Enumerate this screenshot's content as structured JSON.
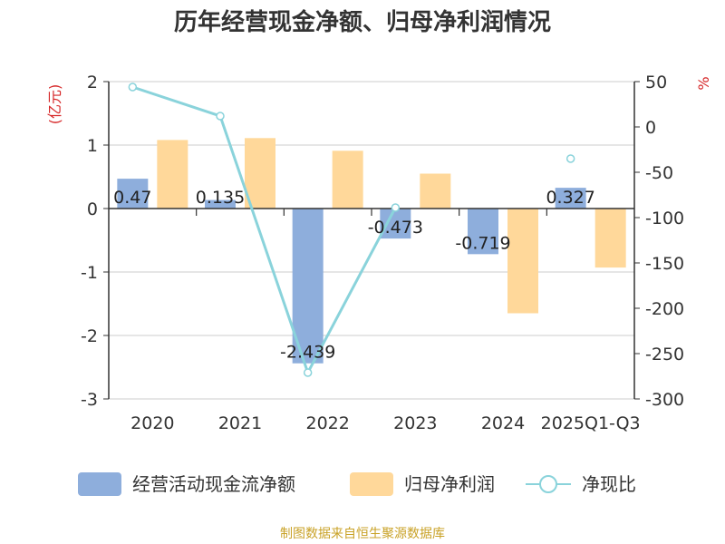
{
  "chart_data": {
    "type": "bar",
    "title": "历年经营现金净额、归母净利润情况",
    "categories": [
      "2020",
      "2021",
      "2022",
      "2023",
      "2024",
      "2025Q1-Q3"
    ],
    "series": [
      {
        "name": "经营活动现金流净额",
        "type": "bar",
        "axis": "left",
        "color": "#8eaedc",
        "values": [
          0.47,
          0.135,
          -2.439,
          -0.473,
          -0.719,
          0.327
        ],
        "labels": [
          "0.47",
          "0.135",
          "-2.439",
          "-0.473",
          "-0.719",
          "0.327"
        ]
      },
      {
        "name": "归母净利润",
        "type": "bar",
        "axis": "left",
        "color": "#ffd89a",
        "values": [
          1.08,
          1.11,
          0.91,
          0.55,
          -1.65,
          -0.93
        ]
      },
      {
        "name": "净现比",
        "type": "line",
        "axis": "right",
        "color": "#8ad3db",
        "values": [
          44,
          12,
          -271,
          -89,
          null,
          -35
        ]
      }
    ],
    "left_axis": {
      "label": "(亿元)",
      "min": -3,
      "max": 2,
      "ticks": [
        2,
        1,
        0,
        -1,
        -2,
        -3
      ]
    },
    "right_axis": {
      "label": "%",
      "min": -300,
      "max": 50,
      "ticks": [
        50,
        0,
        -50,
        -100,
        -150,
        -200,
        -250,
        -300
      ]
    },
    "legend_position": "bottom",
    "grid": true
  },
  "source": "制图数据来自恒生聚源数据库"
}
